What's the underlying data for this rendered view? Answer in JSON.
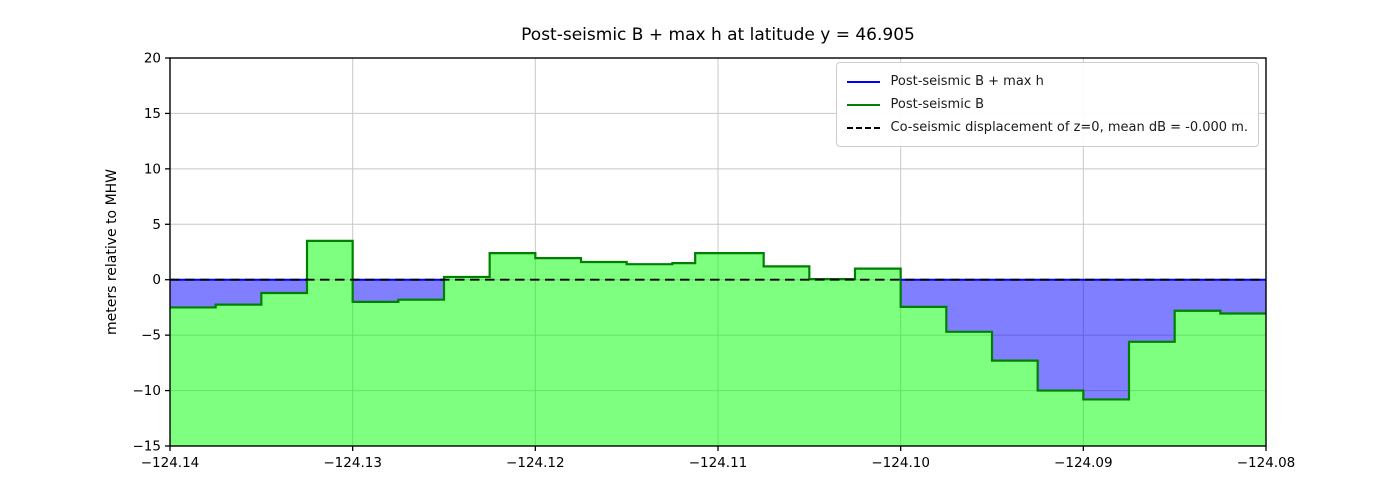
{
  "chart_data": {
    "type": "area",
    "title": "Post-seismic B + max h at latitude y = 46.905",
    "xlabel": "",
    "ylabel": "meters relative to MHW",
    "xlim": [
      -124.14,
      -124.08
    ],
    "ylim": [
      -15,
      20
    ],
    "grid": true,
    "legend_position": "upper right",
    "xticks": [
      -124.14,
      -124.13,
      -124.12,
      -124.11,
      -124.1,
      -124.09,
      -124.08
    ],
    "xtick_labels": [
      "−124.14",
      "−124.13",
      "−124.12",
      "−124.11",
      "−124.10",
      "−124.09",
      "−124.08"
    ],
    "yticks": [
      -15,
      -10,
      -5,
      0,
      5,
      10,
      15,
      20
    ],
    "ytick_labels": [
      "−15",
      "−10",
      "−5",
      "0",
      "5",
      "10",
      "15",
      "20"
    ],
    "series": [
      {
        "name": "Post-seismic B + max h",
        "type": "line",
        "color": "#0000ff",
        "linestyle": "solid",
        "y": 0,
        "note": "flat sea-surface line at 0 m, visible only over segments where B < 0"
      },
      {
        "name": "Post-seismic B",
        "type": "step-area",
        "color": "#008000",
        "fill": "rgba(0,255,0,0.5)",
        "linestyle": "solid",
        "step_x": [
          -124.14,
          -124.1375,
          -124.135,
          -124.1325,
          -124.13,
          -124.1275,
          -124.125,
          -124.1225,
          -124.12,
          -124.1175,
          -124.115,
          -124.1125,
          -124.11125,
          -124.1075,
          -124.105,
          -124.1025,
          -124.1,
          -124.0975,
          -124.095,
          -124.0925,
          -124.09,
          -124.0875,
          -124.085,
          -124.0825,
          -124.08
        ],
        "step_values": [
          -2.5,
          -2.25,
          -1.2,
          3.5,
          -2.0,
          -1.8,
          0.25,
          2.4,
          1.95,
          1.6,
          1.4,
          1.5,
          2.4,
          1.2,
          0.05,
          1.0,
          -2.45,
          -4.7,
          -7.3,
          -10.0,
          -10.8,
          -5.6,
          -2.8,
          -3.05
        ]
      },
      {
        "name": "Co-seismic displacement of z=0, mean dB = -0.000 m.",
        "type": "line",
        "color": "#000000",
        "linestyle": "dashed",
        "y": 0
      }
    ],
    "water_fill": "rgba(0,0,255,0.5)",
    "grid_color": "#c8c8c8",
    "spine_color": "#000000"
  },
  "legend": {
    "entries": [
      {
        "label": "Post-seismic B + max h",
        "color": "#0000ff",
        "style": "solid"
      },
      {
        "label": "Post-seismic B",
        "color": "#008000",
        "style": "solid"
      },
      {
        "label": "Co-seismic displacement of z=0, mean dB = -0.000 m.",
        "color": "#000000",
        "style": "dashed"
      }
    ]
  }
}
